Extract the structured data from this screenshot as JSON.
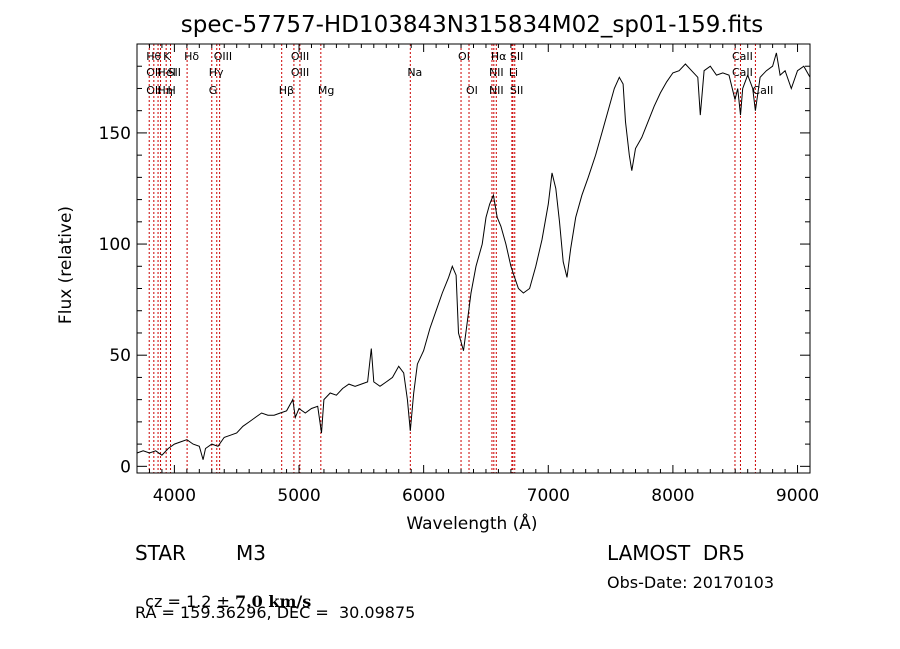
{
  "chart_data": {
    "type": "line",
    "title": "spec-57757-HD103843N315834M02_sp01-159.fits",
    "xlabel": "Wavelength (Å)",
    "ylabel": "Flux (relative)",
    "xlim": [
      3700,
      9100
    ],
    "ylim": [
      -3,
      190
    ],
    "x_ticks": [
      4000,
      5000,
      6000,
      7000,
      8000,
      9000
    ],
    "x_tick_labels": [
      "4000",
      "5000",
      "6000",
      "7000",
      "8000",
      "9000"
    ],
    "y_ticks": [
      0,
      50,
      100,
      150
    ],
    "y_tick_labels": [
      "0",
      "50",
      "100",
      "150"
    ],
    "grid": false,
    "series": [
      {
        "color": "#000000",
        "points": [
          [
            3700,
            6
          ],
          [
            3750,
            7
          ],
          [
            3800,
            6
          ],
          [
            3850,
            7
          ],
          [
            3900,
            5
          ],
          [
            3950,
            8
          ],
          [
            4000,
            10
          ],
          [
            4050,
            11
          ],
          [
            4100,
            12
          ],
          [
            4150,
            10
          ],
          [
            4200,
            9
          ],
          [
            4230,
            3
          ],
          [
            4250,
            8
          ],
          [
            4300,
            10
          ],
          [
            4350,
            9
          ],
          [
            4400,
            13
          ],
          [
            4450,
            14
          ],
          [
            4500,
            15
          ],
          [
            4550,
            18
          ],
          [
            4600,
            20
          ],
          [
            4650,
            22
          ],
          [
            4700,
            24
          ],
          [
            4750,
            23
          ],
          [
            4800,
            23
          ],
          [
            4850,
            24
          ],
          [
            4900,
            25
          ],
          [
            4950,
            30
          ],
          [
            4970,
            22
          ],
          [
            5000,
            26
          ],
          [
            5050,
            24
          ],
          [
            5100,
            26
          ],
          [
            5150,
            27
          ],
          [
            5180,
            15
          ],
          [
            5200,
            30
          ],
          [
            5250,
            33
          ],
          [
            5300,
            32
          ],
          [
            5350,
            35
          ],
          [
            5400,
            37
          ],
          [
            5450,
            36
          ],
          [
            5500,
            37
          ],
          [
            5550,
            38
          ],
          [
            5580,
            53
          ],
          [
            5600,
            38
          ],
          [
            5650,
            36
          ],
          [
            5700,
            38
          ],
          [
            5750,
            40
          ],
          [
            5800,
            45
          ],
          [
            5840,
            42
          ],
          [
            5870,
            30
          ],
          [
            5893,
            16
          ],
          [
            5920,
            33
          ],
          [
            5950,
            46
          ],
          [
            6000,
            52
          ],
          [
            6050,
            62
          ],
          [
            6100,
            70
          ],
          [
            6150,
            78
          ],
          [
            6200,
            85
          ],
          [
            6230,
            90
          ],
          [
            6260,
            86
          ],
          [
            6280,
            60
          ],
          [
            6300,
            56
          ],
          [
            6320,
            52
          ],
          [
            6350,
            65
          ],
          [
            6380,
            78
          ],
          [
            6420,
            90
          ],
          [
            6470,
            100
          ],
          [
            6500,
            112
          ],
          [
            6530,
            118
          ],
          [
            6560,
            122
          ],
          [
            6590,
            112
          ],
          [
            6620,
            108
          ],
          [
            6660,
            100
          ],
          [
            6700,
            90
          ],
          [
            6730,
            85
          ],
          [
            6760,
            80
          ],
          [
            6800,
            78
          ],
          [
            6850,
            80
          ],
          [
            6900,
            90
          ],
          [
            6950,
            102
          ],
          [
            7000,
            118
          ],
          [
            7030,
            132
          ],
          [
            7060,
            125
          ],
          [
            7090,
            110
          ],
          [
            7120,
            92
          ],
          [
            7150,
            85
          ],
          [
            7180,
            98
          ],
          [
            7220,
            112
          ],
          [
            7270,
            122
          ],
          [
            7320,
            130
          ],
          [
            7380,
            140
          ],
          [
            7430,
            150
          ],
          [
            7480,
            160
          ],
          [
            7530,
            170
          ],
          [
            7570,
            175
          ],
          [
            7600,
            172
          ],
          [
            7620,
            155
          ],
          [
            7650,
            140
          ],
          [
            7670,
            133
          ],
          [
            7700,
            143
          ],
          [
            7750,
            148
          ],
          [
            7800,
            155
          ],
          [
            7850,
            162
          ],
          [
            7900,
            168
          ],
          [
            7950,
            173
          ],
          [
            8000,
            177
          ],
          [
            8050,
            178
          ],
          [
            8100,
            181
          ],
          [
            8150,
            178
          ],
          [
            8200,
            175
          ],
          [
            8220,
            158
          ],
          [
            8250,
            178
          ],
          [
            8300,
            180
          ],
          [
            8350,
            176
          ],
          [
            8400,
            177
          ],
          [
            8450,
            176
          ],
          [
            8498,
            165
          ],
          [
            8520,
            170
          ],
          [
            8542,
            158
          ],
          [
            8560,
            170
          ],
          [
            8600,
            176
          ],
          [
            8640,
            170
          ],
          [
            8662,
            160
          ],
          [
            8700,
            175
          ],
          [
            8750,
            178
          ],
          [
            8800,
            180
          ],
          [
            8830,
            186
          ],
          [
            8860,
            176
          ],
          [
            8900,
            178
          ],
          [
            8950,
            170
          ],
          [
            9000,
            178
          ],
          [
            9050,
            180
          ],
          [
            9100,
            175
          ]
        ]
      }
    ],
    "line_markers": [
      {
        "x": 3798,
        "labels": [
          "Hθ",
          "OII",
          "OII"
        ]
      },
      {
        "x": 3835,
        "labels": [
          "",
          "",
          ""
        ]
      },
      {
        "x": 3869,
        "labels": [
          "",
          "",
          ""
        ]
      },
      {
        "x": 3889,
        "labels": [
          "",
          "HeI",
          "Hη"
        ]
      },
      {
        "x": 3934,
        "labels": [
          "K",
          "",
          ""
        ]
      },
      {
        "x": 3969,
        "labels": [
          "",
          "SII",
          "H"
        ]
      },
      {
        "x": 4102,
        "labels": [
          "Hδ",
          "",
          ""
        ]
      },
      {
        "x": 4300,
        "labels": [
          "",
          "Hγ",
          "G"
        ]
      },
      {
        "x": 4340,
        "labels": [
          "OIII",
          "",
          ""
        ]
      },
      {
        "x": 4363,
        "labels": [
          "",
          "",
          ""
        ]
      },
      {
        "x": 4861,
        "labels": [
          "",
          "",
          "Hβ"
        ]
      },
      {
        "x": 4959,
        "labels": [
          "OIII",
          "OIII",
          ""
        ]
      },
      {
        "x": 5007,
        "labels": [
          "",
          "",
          ""
        ]
      },
      {
        "x": 5175,
        "labels": [
          "",
          "",
          "Mg"
        ]
      },
      {
        "x": 5893,
        "labels": [
          "",
          "Na",
          ""
        ]
      },
      {
        "x": 6300,
        "labels": [
          "OI",
          "",
          ""
        ]
      },
      {
        "x": 6364,
        "labels": [
          "",
          "",
          "OI"
        ]
      },
      {
        "x": 6548,
        "labels": [
          "",
          "NII",
          "NII"
        ]
      },
      {
        "x": 6563,
        "labels": [
          "Hα",
          "",
          ""
        ]
      },
      {
        "x": 6583,
        "labels": [
          "",
          "",
          ""
        ]
      },
      {
        "x": 6708,
        "labels": [
          "",
          "Li",
          ""
        ]
      },
      {
        "x": 6716,
        "labels": [
          "SII",
          "",
          "SII"
        ]
      },
      {
        "x": 6731,
        "labels": [
          "",
          "",
          ""
        ]
      },
      {
        "x": 8498,
        "labels": [
          "CaII",
          "CaII",
          ""
        ]
      },
      {
        "x": 8542,
        "labels": [
          "",
          "",
          ""
        ]
      },
      {
        "x": 8662,
        "labels": [
          "",
          "",
          "CaII"
        ]
      }
    ],
    "marker_color": "#cc0000"
  },
  "info": {
    "object_class": "STAR",
    "subclass": "M3",
    "survey": "LAMOST  DR5",
    "cz_prefix": "cz = 1.2 ± ",
    "cz_value": "7.0 km/s",
    "obs_date": "Obs-Date: 20170103",
    "coords": "RA = 159.36296, DEC =  30.09875"
  }
}
